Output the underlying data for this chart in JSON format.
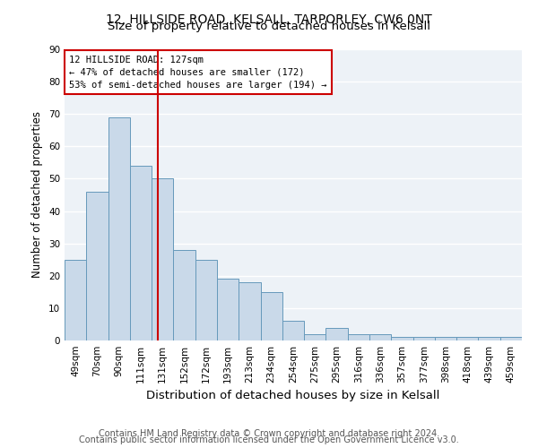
{
  "title1": "12, HILLSIDE ROAD, KELSALL, TARPORLEY, CW6 0NT",
  "title2": "Size of property relative to detached houses in Kelsall",
  "xlabel": "Distribution of detached houses by size in Kelsall",
  "ylabel": "Number of detached properties",
  "footnote1": "Contains HM Land Registry data © Crown copyright and database right 2024.",
  "footnote2": "Contains public sector information licensed under the Open Government Licence v3.0.",
  "categories": [
    "49sqm",
    "70sqm",
    "90sqm",
    "111sqm",
    "131sqm",
    "152sqm",
    "172sqm",
    "193sqm",
    "213sqm",
    "234sqm",
    "254sqm",
    "275sqm",
    "295sqm",
    "316sqm",
    "336sqm",
    "357sqm",
    "377sqm",
    "398sqm",
    "418sqm",
    "439sqm",
    "459sqm"
  ],
  "values": [
    25,
    46,
    69,
    54,
    50,
    28,
    25,
    19,
    18,
    15,
    6,
    2,
    4,
    2,
    2,
    1,
    1,
    1,
    1,
    1,
    1
  ],
  "bar_color": "#c9d9e9",
  "bar_edge_color": "#6699bb",
  "bar_width": 1.0,
  "red_line_color": "#cc0000",
  "annotation_box_text": "12 HILLSIDE ROAD: 127sqm\n← 47% of detached houses are smaller (172)\n53% of semi-detached houses are larger (194) →",
  "annotation_box_color": "#cc0000",
  "annotation_box_fill": "#ffffff",
  "ylim": [
    0,
    90
  ],
  "yticks": [
    0,
    10,
    20,
    30,
    40,
    50,
    60,
    70,
    80,
    90
  ],
  "bg_color": "#edf2f7",
  "grid_color": "#ffffff",
  "title1_fontsize": 10,
  "title2_fontsize": 9.5,
  "xlabel_fontsize": 9.5,
  "ylabel_fontsize": 8.5,
  "tick_fontsize": 7.5,
  "footnote_fontsize": 7,
  "annot_fontsize": 7.5
}
